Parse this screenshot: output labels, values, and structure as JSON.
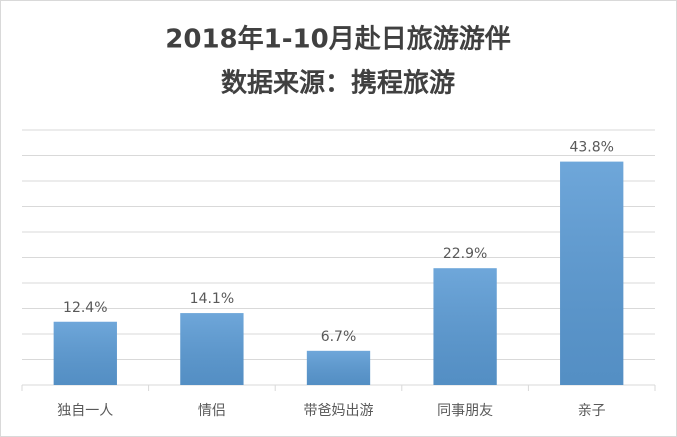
{
  "chart_data": {
    "type": "bar",
    "title": "2018年1-10月赴日旅游游伴",
    "subtitle": "数据来源：携程旅游",
    "categories": [
      "独自一人",
      "情侣",
      "带爸妈出游",
      "同事朋友",
      "亲子"
    ],
    "values": [
      12.4,
      14.1,
      6.7,
      22.9,
      43.8
    ],
    "value_labels": [
      "12.4%",
      "14.1%",
      "6.7%",
      "22.9%",
      "43.8%"
    ],
    "color": "#5b9bd5",
    "ylim": [
      0,
      50
    ],
    "yticks": [
      0,
      5,
      10,
      15,
      20,
      25,
      30,
      35,
      40,
      45,
      50
    ],
    "grid": true,
    "tick_labels": false
  }
}
